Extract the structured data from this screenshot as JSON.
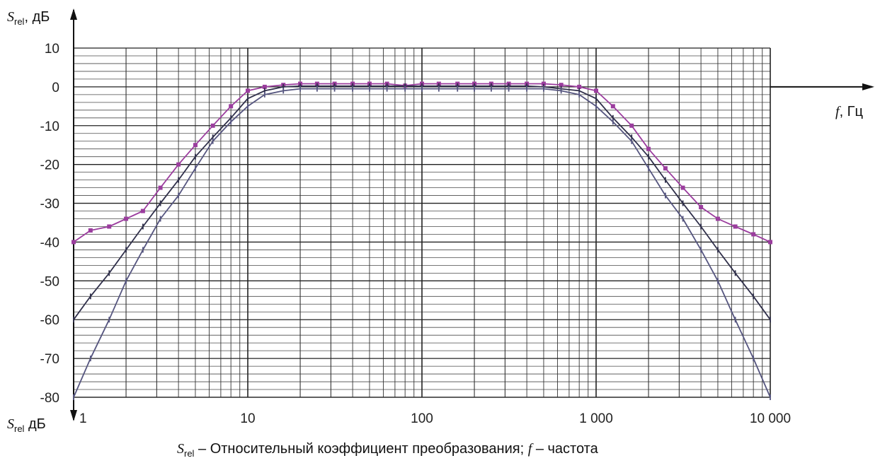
{
  "chart_data": {
    "type": "line",
    "x_scale": "log",
    "xlim": [
      1,
      10000
    ],
    "ylim": [
      -80,
      10
    ],
    "grid": true,
    "y_ticks": [
      "10",
      "0",
      "-10",
      "-20",
      "-30",
      "-40",
      "-50",
      "-60",
      "-70",
      "-80"
    ],
    "x_ticks": [
      "1",
      "10",
      "100",
      "1 000",
      "10 000"
    ],
    "ylabel": {
      "symbol": "S",
      "sub": "rel",
      "unit": ", дБ"
    },
    "ylabel_bottom": {
      "symbol": "S",
      "sub": "rel",
      "unit": " дБ"
    },
    "xlabel": {
      "symbol": "f",
      "unit": ", Гц"
    },
    "caption": {
      "sym1": "S",
      "sub1": "rel",
      "text1": " – Относительный коэффициент преобразования; ",
      "sym2": "f",
      "text2": " – частота"
    },
    "series": [
      {
        "color": "#9b3d9e",
        "x": [
          1,
          1.25,
          1.6,
          2,
          2.5,
          3.15,
          4,
          5,
          6.3,
          8,
          10,
          12.5,
          16,
          20,
          25,
          31.5,
          40,
          50,
          63,
          80,
          100,
          125,
          160,
          200,
          250,
          315,
          400,
          500,
          630,
          800,
          1000,
          1250,
          1600,
          2000,
          2500,
          3150,
          4000,
          5000,
          6300,
          8000,
          10000
        ],
        "y": [
          -40,
          -37,
          -36,
          -34,
          -32,
          -26,
          -20,
          -15,
          -10,
          -5,
          -1,
          0,
          0.5,
          0.8,
          0.8,
          0.8,
          0.8,
          0.8,
          0.8,
          0.3,
          0.8,
          0.8,
          0.8,
          0.8,
          0.8,
          0.8,
          0.8,
          0.8,
          0.5,
          0,
          -1,
          -5,
          -10,
          -16,
          -21,
          -26,
          -31,
          -34,
          -36,
          -38,
          -40
        ]
      },
      {
        "color": "#2f2f4a",
        "x": [
          1,
          1.25,
          1.6,
          2,
          2.5,
          3.15,
          4,
          5,
          6.3,
          8,
          10,
          12.5,
          16,
          20,
          25,
          31.5,
          40,
          50,
          63,
          80,
          100,
          125,
          160,
          200,
          250,
          315,
          400,
          500,
          630,
          800,
          1000,
          1250,
          1600,
          2000,
          2500,
          3150,
          4000,
          5000,
          6300,
          8000,
          10000
        ],
        "y": [
          -60,
          -54,
          -48,
          -42,
          -36,
          -30,
          -24,
          -18,
          -13,
          -8,
          -3,
          -1,
          0,
          0.2,
          0.2,
          0.2,
          0.2,
          0.2,
          0.2,
          0.2,
          0.2,
          0.2,
          0.2,
          0.2,
          0.2,
          0.2,
          0.2,
          0,
          -0.5,
          -1,
          -3,
          -8,
          -13,
          -18,
          -24,
          -30,
          -36,
          -42,
          -48,
          -54,
          -60
        ]
      },
      {
        "color": "#55557f",
        "x": [
          1,
          1.25,
          1.6,
          2,
          2.5,
          3.15,
          4,
          5,
          6.3,
          8,
          10,
          12.5,
          16,
          20,
          25,
          31.5,
          40,
          50,
          63,
          80,
          100,
          125,
          160,
          200,
          250,
          315,
          400,
          500,
          630,
          800,
          1000,
          1250,
          1600,
          2000,
          2500,
          3150,
          4000,
          5000,
          6300,
          8000,
          10000
        ],
        "y": [
          -80,
          -70,
          -60,
          -50,
          -42,
          -34,
          -28,
          -21,
          -14,
          -9,
          -5,
          -2,
          -1,
          -0.5,
          -0.5,
          -0.5,
          -0.5,
          -0.5,
          -0.5,
          -0.5,
          -0.5,
          -0.5,
          -0.5,
          -0.5,
          -0.5,
          -0.5,
          -0.5,
          -0.5,
          -1,
          -2,
          -5,
          -9,
          -14,
          -21,
          -28,
          -34,
          -42,
          -50,
          -60,
          -70,
          -80
        ]
      }
    ]
  }
}
